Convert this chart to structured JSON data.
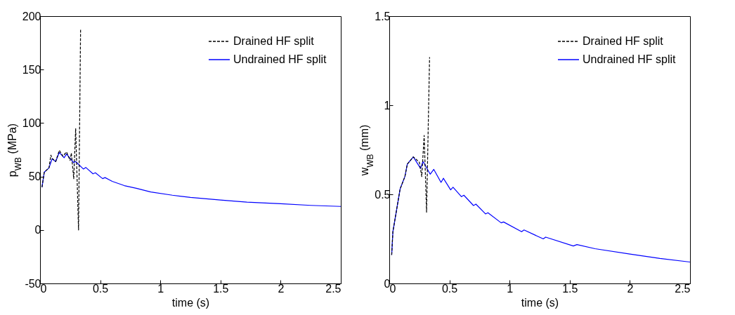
{
  "chart_data": [
    {
      "type": "line",
      "xlabel": "time (s)",
      "ylabel": "p$_{WB}$ (MPa)",
      "xlim": [
        0,
        2.5
      ],
      "xticks": [
        0,
        0.5,
        1,
        1.5,
        2,
        2.5
      ],
      "ylim": [
        -50,
        200
      ],
      "yticks": [
        -50,
        0,
        50,
        100,
        150,
        200
      ],
      "grid": false,
      "legend": "top right",
      "marker": "none",
      "series": [
        {
          "name": "Drained HF split",
          "color": "#000000",
          "line_style": "dashed",
          "x": [
            0.016,
            0.035,
            0.074,
            0.09,
            0.1,
            0.13,
            0.16,
            0.19,
            0.22,
            0.25,
            0.26,
            0.28,
            0.296,
            0.32,
            0.337
          ],
          "values": [
            40,
            54,
            58,
            70,
            67,
            64,
            74.5,
            69,
            73,
            65,
            72,
            48,
            95,
            0,
            188
          ]
        },
        {
          "name": "Undrained HF split",
          "color": "#0000ff",
          "line_style": "solid",
          "x": [
            0.016,
            0.035,
            0.074,
            0.1,
            0.13,
            0.16,
            0.2,
            0.22,
            0.28,
            0.296,
            0.36,
            0.38,
            0.44,
            0.46,
            0.52,
            0.54,
            0.6,
            0.7,
            0.8,
            0.92,
            1.1,
            1.25,
            1.5,
            1.72,
            2.0,
            2.25,
            2.5
          ],
          "values": [
            40,
            54,
            58,
            66.5,
            64,
            72.5,
            67.5,
            71,
            63,
            64,
            57,
            58.5,
            52.5,
            53.5,
            48,
            49,
            45.5,
            41.5,
            39,
            35.5,
            32.5,
            30.5,
            28,
            26,
            24.5,
            23,
            22
          ]
        }
      ]
    },
    {
      "type": "line",
      "xlabel": "time (s)",
      "ylabel": "w$_{WB}$ (mm)",
      "xlim": [
        0,
        2.5
      ],
      "xticks": [
        0,
        0.5,
        1,
        1.5,
        2,
        2.5
      ],
      "ylim": [
        0,
        1.5
      ],
      "yticks": [
        0,
        0.5,
        1,
        1.5
      ],
      "grid": false,
      "legend": "top right",
      "marker": "none",
      "series": [
        {
          "name": "Drained HF split",
          "color": "#000000",
          "line_style": "dashed",
          "x": [
            0.02,
            0.03,
            0.09,
            0.13,
            0.15,
            0.2,
            0.25,
            0.27,
            0.29,
            0.31,
            0.335
          ],
          "values": [
            0.16,
            0.29,
            0.53,
            0.6,
            0.67,
            0.71,
            0.68,
            0.6,
            0.83,
            0.4,
            1.27
          ]
        },
        {
          "name": "Undrained HF split",
          "color": "#0000ff",
          "line_style": "solid",
          "x": [
            0.02,
            0.03,
            0.09,
            0.13,
            0.15,
            0.2,
            0.26,
            0.28,
            0.34,
            0.37,
            0.43,
            0.45,
            0.51,
            0.53,
            0.6,
            0.62,
            0.7,
            0.72,
            0.8,
            0.82,
            0.93,
            0.95,
            1.1,
            1.12,
            1.28,
            1.3,
            1.53,
            1.56,
            1.71,
            2.0,
            2.25,
            2.5
          ],
          "values": [
            0.16,
            0.29,
            0.53,
            0.6,
            0.67,
            0.71,
            0.645,
            0.685,
            0.613,
            0.64,
            0.567,
            0.59,
            0.525,
            0.54,
            0.487,
            0.495,
            0.437,
            0.445,
            0.39,
            0.397,
            0.34,
            0.345,
            0.29,
            0.3,
            0.25,
            0.26,
            0.21,
            0.218,
            0.195,
            0.165,
            0.14,
            0.12
          ]
        }
      ]
    }
  ]
}
